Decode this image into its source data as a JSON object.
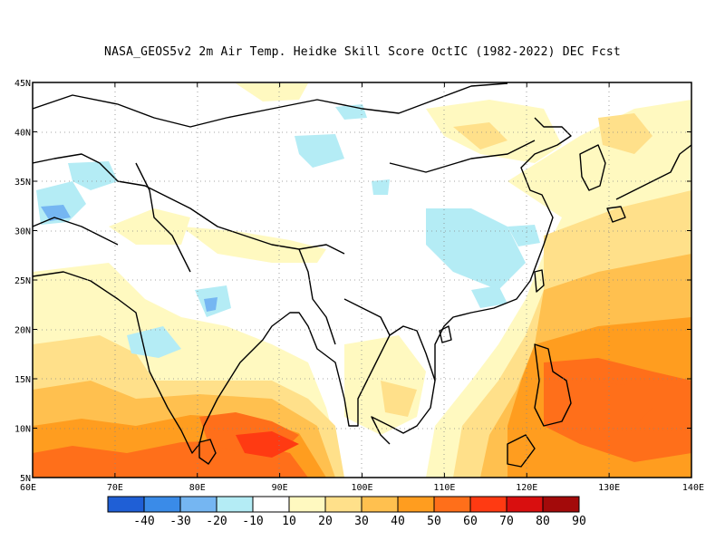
{
  "title": "NASA_GEOS5v2  2m Air Temp. Heidke Skill Score OctIC (1982-2022) DEC Fcst",
  "map": {
    "lon_labels": [
      "60E",
      "70E",
      "80E",
      "90E",
      "100E",
      "110E",
      "120E",
      "130E",
      "140E"
    ],
    "lat_labels": [
      "45N",
      "40N",
      "35N",
      "30N",
      "25N",
      "20N",
      "15N",
      "10N",
      "5N"
    ],
    "extent": {
      "lon": [
        60,
        140
      ],
      "lat": [
        5,
        45
      ]
    }
  },
  "colorbar": {
    "colors": [
      "#1f5fd6",
      "#3a8be8",
      "#75b6f2",
      "#b4ecf5",
      "#ffffff",
      "#fff9c0",
      "#ffe08a",
      "#ffc04f",
      "#ff9d1f",
      "#ff6f1a",
      "#ff3a12",
      "#d90f0f",
      "#a30a0a"
    ],
    "labels": [
      "-40",
      "-30",
      "-20",
      "-10",
      "10",
      "20",
      "30",
      "40",
      "50",
      "60",
      "70",
      "80",
      "90"
    ]
  }
}
